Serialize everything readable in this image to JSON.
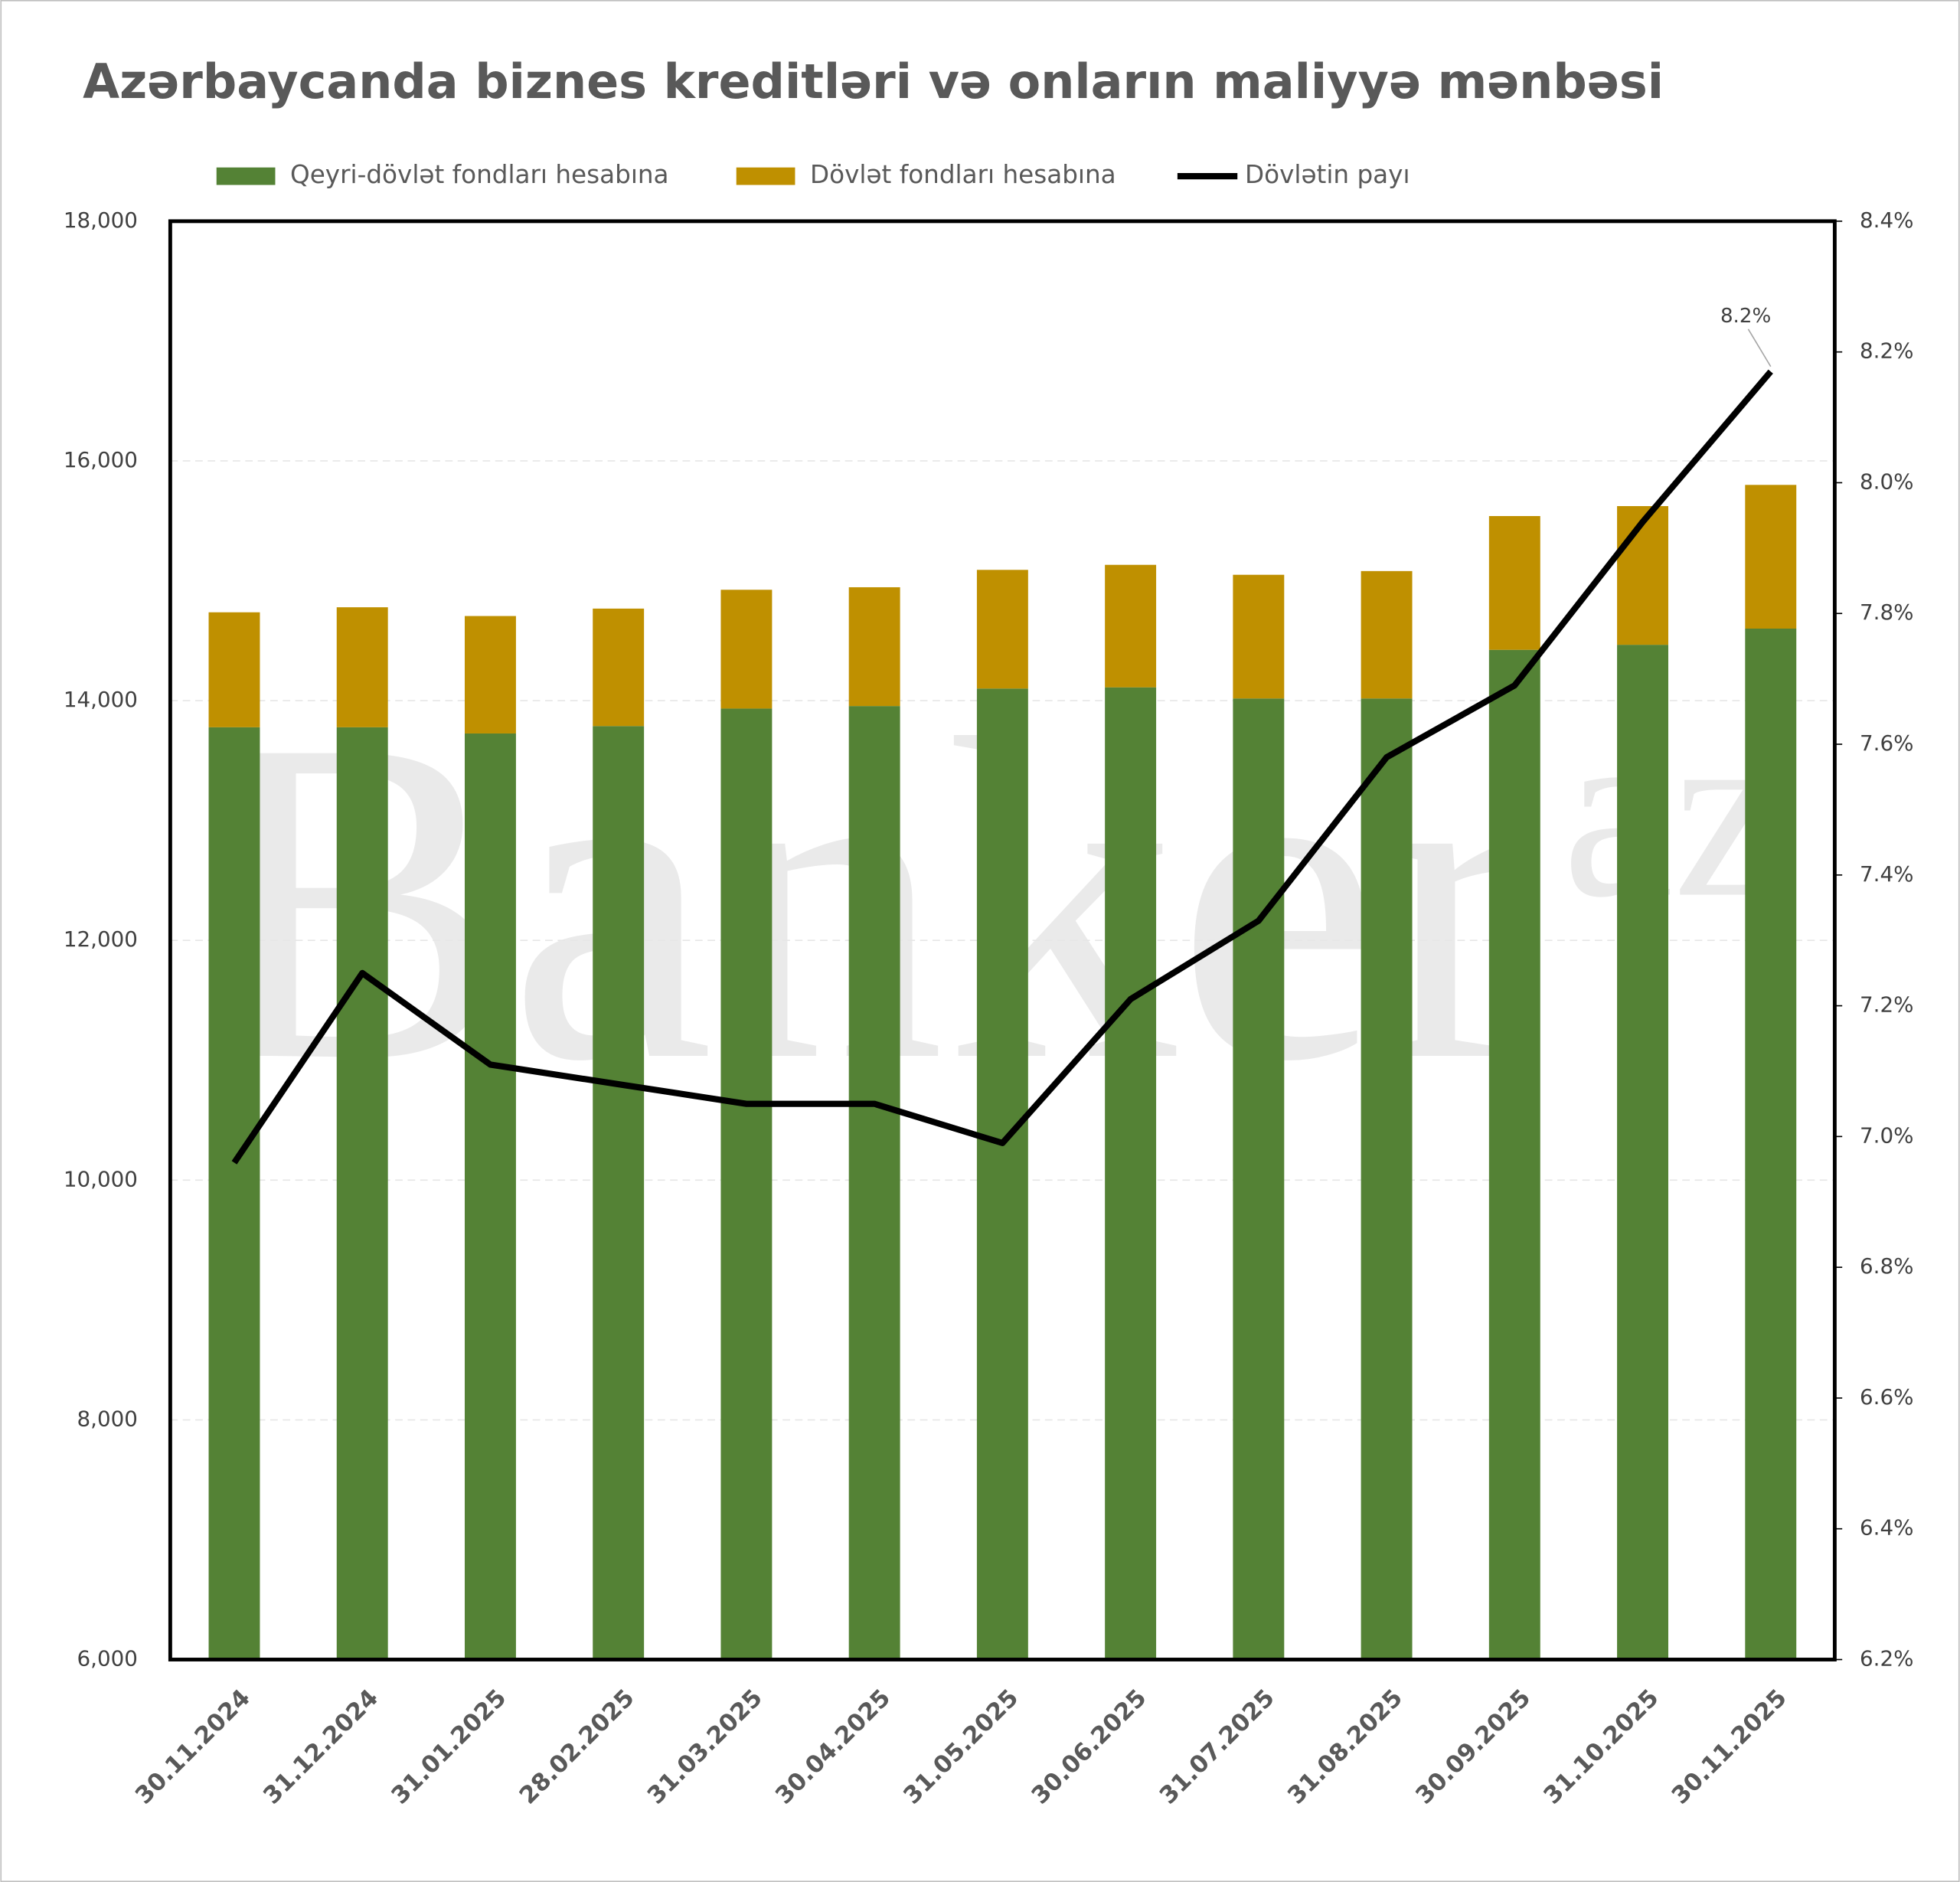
{
  "chart_data": {
    "type": "bar_line",
    "title": "Azərbaycanda biznes kreditləri və onların maliyyə mənbəsi",
    "watermark": [
      "Banker",
      "az"
    ],
    "categories": [
      "30.11.2024",
      "31.12.2024",
      "31.01.2025",
      "28.02.2025",
      "31.03.2025",
      "30.04.2025",
      "31.05.2025",
      "30.06.2025",
      "31.07.2025",
      "31.08.2025",
      "30.09.2025",
      "31.10.2025",
      "30.11.2025"
    ],
    "series": [
      {
        "name": "Qeyri-dövlət fondları hesabına",
        "color": "#548235",
        "type": "bar",
        "values": [
          13778,
          13778,
          13726,
          13788,
          13934,
          13955,
          14101,
          14111,
          14018,
          14018,
          14424,
          14466,
          14601
        ]
      },
      {
        "name": "Dövlət fondları hesabına",
        "color": "#bf9000",
        "type": "bar",
        "values": [
          959,
          1001,
          980,
          980,
          991,
          991,
          990,
          1022,
          1032,
          1063,
          1116,
          1157,
          1199
        ]
      },
      {
        "name": "Dövlətin payı",
        "color": "#000000",
        "type": "line",
        "axis": "y2",
        "values": [
          6.96,
          7.25,
          7.11,
          7.08,
          7.05,
          7.05,
          6.99,
          7.21,
          7.33,
          7.58,
          7.69,
          7.94,
          8.17
        ],
        "value_labels": [
          null,
          null,
          null,
          null,
          null,
          null,
          null,
          null,
          null,
          null,
          null,
          null,
          "8.2%"
        ]
      }
    ],
    "stacked": true,
    "ylim": [
      6000,
      18000
    ],
    "yticks": [
      {
        "value": 6000,
        "label": "6,000"
      },
      {
        "value": 8000,
        "label": "8,000"
      },
      {
        "value": 10000,
        "label": "10,000"
      },
      {
        "value": 12000,
        "label": "12,000"
      },
      {
        "value": 14000,
        "label": "14,000"
      },
      {
        "value": 16000,
        "label": "16,000"
      },
      {
        "value": 18000,
        "label": "18,000"
      }
    ],
    "y2lim": [
      6.2,
      8.4
    ],
    "y2ticks": [
      {
        "value": 6.2,
        "label": "6.2%"
      },
      {
        "value": 6.4,
        "label": "6.4%"
      },
      {
        "value": 6.6,
        "label": "6.6%"
      },
      {
        "value": 6.8,
        "label": "6.8%"
      },
      {
        "value": 7.0,
        "label": "7.0%"
      },
      {
        "value": 7.2,
        "label": "7.2%"
      },
      {
        "value": 7.4,
        "label": "7.4%"
      },
      {
        "value": 7.6,
        "label": "7.6%"
      },
      {
        "value": 7.8,
        "label": "7.8%"
      },
      {
        "value": 8.0,
        "label": "8.0%"
      },
      {
        "value": 8.2,
        "label": "8.2%"
      },
      {
        "value": 8.4,
        "label": "8.4%"
      }
    ],
    "grid": true,
    "legend": "top"
  }
}
